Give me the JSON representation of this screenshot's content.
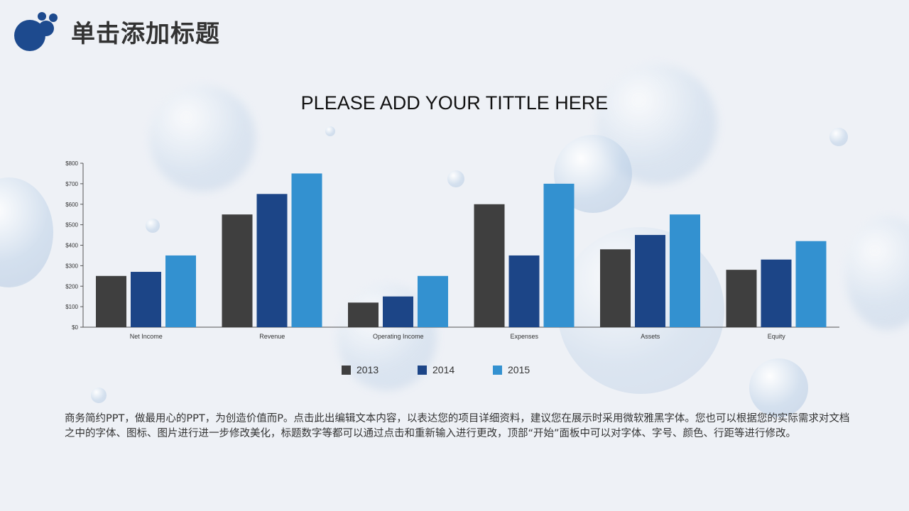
{
  "header": {
    "title": "单击添加标题"
  },
  "colors": {
    "brand": "#1d4a8e",
    "series": [
      "#3f3f3f",
      "#1c4587",
      "#3391d0"
    ]
  },
  "chart_data": {
    "type": "bar",
    "title": "PLEASE ADD YOUR TITTLE HERE",
    "categories": [
      "Net Income",
      "Revenue",
      "Operating Income",
      "Expenses",
      "Assets",
      "Equity"
    ],
    "series": [
      {
        "name": "2013",
        "values": [
          250,
          550,
          120,
          600,
          380,
          280
        ]
      },
      {
        "name": "2014",
        "values": [
          270,
          650,
          150,
          350,
          450,
          330
        ]
      },
      {
        "name": "2015",
        "values": [
          350,
          750,
          250,
          700,
          550,
          420
        ]
      }
    ],
    "yticks": [
      "$0",
      "$100",
      "$200",
      "$300",
      "$400",
      "$500",
      "$600",
      "$700",
      "$800"
    ],
    "ylim": [
      0,
      800
    ],
    "grid": false,
    "legend": "bottom"
  },
  "body_text": "商务简约PPT，做最用心的PPT，为创造价值而P。点击此出编辑文本内容，以表达您的项目详细资料，建议您在展示时采用微软雅黑字体。您也可以根据您的实际需求对文档之中的字体、图标、图片进行进一步修改美化，标题数字等都可以通过点击和重新输入进行更改，顶部“开始”面板中可以对字体、字号、颜色、行距等进行修改。"
}
